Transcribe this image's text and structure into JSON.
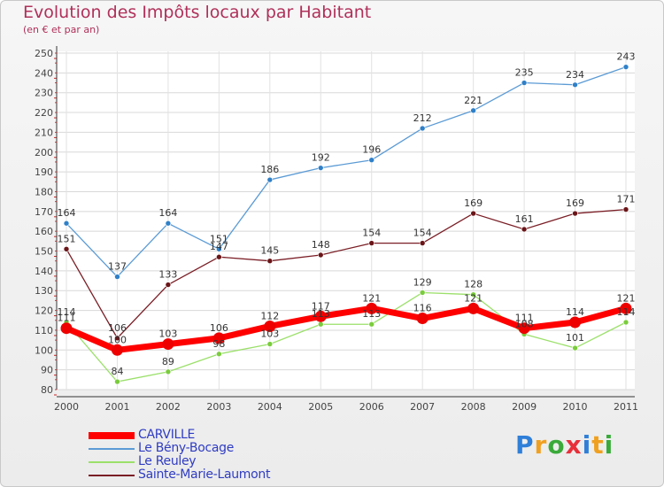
{
  "header": {
    "title": "Evolution des Impôts locaux par Habitant",
    "subtitle": "(en € et par an)"
  },
  "chart_data": {
    "type": "line",
    "title": "Evolution des Impôts locaux par Habitant",
    "subtitle": "(en € et par an)",
    "xlabel": "",
    "ylabel": "",
    "categories": [
      "2000",
      "2001",
      "2002",
      "2003",
      "2004",
      "2005",
      "2006",
      "2007",
      "2008",
      "2009",
      "2010",
      "2011"
    ],
    "ylim": [
      80,
      250
    ],
    "yticks": [
      80,
      90,
      100,
      110,
      120,
      130,
      140,
      150,
      160,
      170,
      180,
      190,
      200,
      210,
      220,
      230,
      240,
      250
    ],
    "grid": true,
    "legend_position": "bottom-left",
    "series": [
      {
        "name": "Le Bény-Bocage",
        "color": "#5b9bd5",
        "marker": "#2f80c8",
        "values": [
          164,
          137,
          164,
          151,
          186,
          192,
          196,
          212,
          221,
          235,
          234,
          243
        ]
      },
      {
        "name": "Sainte-Marie-Laumont",
        "color": "#7a1e25",
        "marker": "#6a1518",
        "values": [
          151,
          106,
          133,
          147,
          145,
          148,
          154,
          154,
          169,
          161,
          169,
          171
        ]
      },
      {
        "name": "Le Reuley",
        "color": "#9be06a",
        "marker": "#7acc3c",
        "values": [
          114,
          84,
          89,
          98,
          103,
          113,
          113,
          129,
          128,
          108,
          101,
          114
        ]
      },
      {
        "name": "CARVILLE",
        "color": "#ff0000",
        "marker": "#ee0000",
        "thick": true,
        "values": [
          111,
          100,
          103,
          106,
          112,
          117,
          121,
          116,
          121,
          111,
          114,
          121
        ]
      }
    ]
  },
  "legend": {
    "items": [
      {
        "label": "CARVILLE",
        "color": "#ff0000"
      },
      {
        "label": "Le Bény-Bocage",
        "color": "#5b9bd5"
      },
      {
        "label": "Le Reuley",
        "color": "#9be06a"
      },
      {
        "label": "Sainte-Marie-Laumont",
        "color": "#7a1e25"
      }
    ]
  },
  "brand": {
    "letters": [
      {
        "ch": "P",
        "color": "#2f7fd8"
      },
      {
        "ch": "r",
        "color": "#f0a020"
      },
      {
        "ch": "o",
        "color": "#3aaa3a"
      },
      {
        "ch": "x",
        "color": "#e8303a"
      },
      {
        "ch": "i",
        "color": "#2f7fd8"
      },
      {
        "ch": "t",
        "color": "#f0a020"
      },
      {
        "ch": "i",
        "color": "#3aaa3a"
      }
    ]
  }
}
